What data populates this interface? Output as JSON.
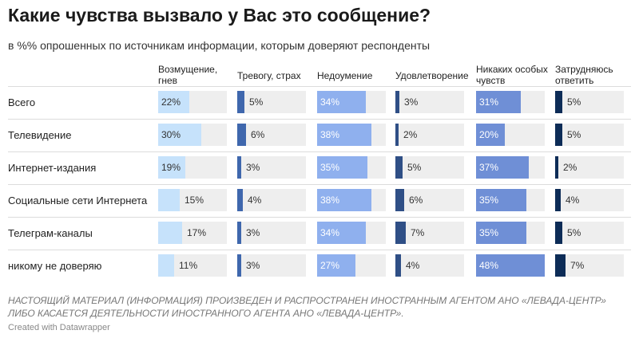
{
  "title": "Какие чувства вызвало у Вас это сообщение?",
  "subtitle": "в %% опрошенных по источникам информации, которым доверяют респонденты",
  "chart_data": {
    "type": "table",
    "columns": [
      {
        "name": "Возмущение, гнев",
        "color": "#c6e2fb"
      },
      {
        "name": "Тревогу, страх",
        "color": "#3f67ad"
      },
      {
        "name": "Недоумение",
        "color": "#8fb0ee"
      },
      {
        "name": "Удовлетворение",
        "color": "#2f4f86"
      },
      {
        "name": "Никаких особых чувств",
        "color": "#6f8fd6"
      },
      {
        "name": "Затрудняюсь ответить",
        "color": "#0d2c57"
      }
    ],
    "rows": [
      {
        "label": "Всего",
        "values": [
          22,
          5,
          34,
          3,
          31,
          5
        ]
      },
      {
        "label": "Телевидение",
        "values": [
          30,
          6,
          38,
          2,
          20,
          5
        ]
      },
      {
        "label": "Интернет-издания",
        "values": [
          19,
          3,
          35,
          5,
          37,
          2
        ]
      },
      {
        "label": "Социальные сети Интернета",
        "values": [
          15,
          4,
          38,
          6,
          35,
          4
        ]
      },
      {
        "label": "Телеграм-каналы",
        "values": [
          17,
          3,
          34,
          7,
          35,
          5
        ]
      },
      {
        "label": "никому не доверяю",
        "values": [
          11,
          3,
          27,
          4,
          48,
          7
        ]
      }
    ],
    "max_value": 48,
    "value_suffix": "%"
  },
  "note": "НАСТОЯЩИЙ МАТЕРИАЛ (ИНФОРМАЦИЯ) ПРОИЗВЕДЕН И РАСПРОСТРАНЕН ИНОСТРАННЫМ АГЕНТОМ АНО «ЛЕВАДА-ЦЕНТР» ЛИБО КАСАЕТСЯ ДЕЯТЕЛЬНОСТИ ИНОСТРАННОГО АГЕНТА АНО «ЛЕВАДА-ЦЕНТР».",
  "credit": "Created with Datawrapper"
}
